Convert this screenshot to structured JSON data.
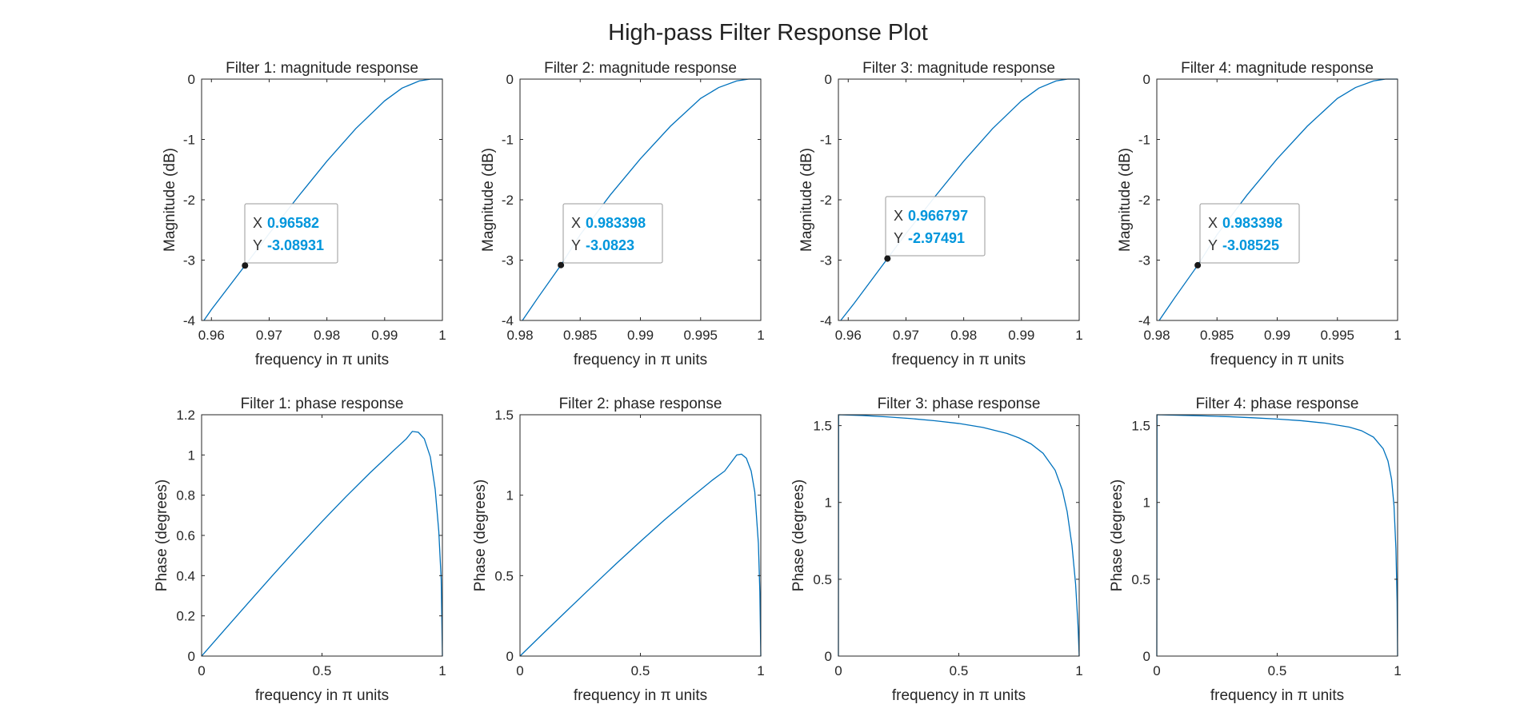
{
  "figure_title": "High-pass Filter Response Plot",
  "colors": {
    "line": "#0072BD",
    "axes": "#262626",
    "datatip_value": "#0096DC",
    "marker": "#1a1a1a"
  },
  "chart_data": [
    {
      "type": "line",
      "title": "Filter 1: magnitude response",
      "xlabel": "frequency in π units",
      "ylabel": "Magnitude (dB)",
      "xlim": [
        0.9583,
        1
      ],
      "ylim": [
        -4,
        0
      ],
      "xticks": [
        0.96,
        0.97,
        0.98,
        0.99,
        1
      ],
      "xtick_labels": [
        "0.96",
        "0.97",
        "0.98",
        "0.99",
        "1"
      ],
      "yticks": [
        -4,
        -3,
        -2,
        -1,
        0
      ],
      "ytick_labels": [
        "-4",
        "-3",
        "-2",
        "-1",
        "0"
      ],
      "series": [
        {
          "x": [
            0.9587,
            0.96,
            0.96582,
            0.97,
            0.975,
            0.98,
            0.985,
            0.99,
            0.993,
            0.996,
            0.998,
            1.0
          ],
          "y": [
            -4.0,
            -3.82,
            -3.08931,
            -2.56,
            -1.95,
            -1.36,
            -0.82,
            -0.36,
            -0.15,
            -0.03,
            0.0,
            0.0
          ]
        }
      ],
      "datatip": {
        "x": 0.96582,
        "y": -3.08931,
        "x_label": "X",
        "y_label": "Y",
        "x_text": "0.96582",
        "y_text": "-3.08931"
      }
    },
    {
      "type": "line",
      "title": "Filter 2: magnitude response",
      "xlabel": "frequency in π units",
      "ylabel": "Magnitude (dB)",
      "xlim": [
        0.98,
        1
      ],
      "ylim": [
        -4,
        0
      ],
      "xticks": [
        0.98,
        0.985,
        0.99,
        0.995,
        1
      ],
      "xtick_labels": [
        "0.98",
        "0.985",
        "0.99",
        "0.995",
        "1"
      ],
      "yticks": [
        -4,
        -3,
        -2,
        -1,
        0
      ],
      "ytick_labels": [
        "-4",
        "-3",
        "-2",
        "-1",
        "0"
      ],
      "series": [
        {
          "x": [
            0.9802,
            0.9815,
            0.983398,
            0.985,
            0.9875,
            0.99,
            0.9925,
            0.995,
            0.9965,
            0.998,
            0.999,
            1.0
          ],
          "y": [
            -4.0,
            -3.62,
            -3.0823,
            -2.58,
            -1.92,
            -1.32,
            -0.78,
            -0.32,
            -0.14,
            -0.03,
            0.0,
            0.0
          ]
        }
      ],
      "datatip": {
        "x": 0.983398,
        "y": -3.0823,
        "x_label": "X",
        "y_label": "Y",
        "x_text": "0.983398",
        "y_text": "-3.0823"
      }
    },
    {
      "type": "line",
      "title": "Filter 3: magnitude response",
      "xlabel": "frequency in π units",
      "ylabel": "Magnitude (dB)",
      "xlim": [
        0.9583,
        1
      ],
      "ylim": [
        -4,
        0
      ],
      "xticks": [
        0.96,
        0.97,
        0.98,
        0.99,
        1
      ],
      "xtick_labels": [
        "0.96",
        "0.97",
        "0.98",
        "0.99",
        "1"
      ],
      "yticks": [
        -4,
        -3,
        -2,
        -1,
        0
      ],
      "ytick_labels": [
        "-4",
        "-3",
        "-2",
        "-1",
        "0"
      ],
      "series": [
        {
          "x": [
            0.9587,
            0.961,
            0.966797,
            0.97,
            0.975,
            0.98,
            0.985,
            0.99,
            0.993,
            0.996,
            0.998,
            1.0
          ],
          "y": [
            -4.0,
            -3.72,
            -2.97491,
            -2.56,
            -1.95,
            -1.36,
            -0.82,
            -0.36,
            -0.15,
            -0.03,
            0.0,
            0.0
          ]
        }
      ],
      "datatip": {
        "x": 0.966797,
        "y": -2.97491,
        "x_label": "X",
        "y_label": "Y",
        "x_text": "0.966797",
        "y_text": "-2.97491"
      }
    },
    {
      "type": "line",
      "title": "Filter 4: magnitude response",
      "xlabel": "frequency in π units",
      "ylabel": "Magnitude (dB)",
      "xlim": [
        0.98,
        1
      ],
      "ylim": [
        -4,
        0
      ],
      "xticks": [
        0.98,
        0.985,
        0.99,
        0.995,
        1
      ],
      "xtick_labels": [
        "0.98",
        "0.985",
        "0.99",
        "0.995",
        "1"
      ],
      "yticks": [
        -4,
        -3,
        -2,
        -1,
        0
      ],
      "ytick_labels": [
        "-4",
        "-3",
        "-2",
        "-1",
        "0"
      ],
      "series": [
        {
          "x": [
            0.9802,
            0.9815,
            0.983398,
            0.985,
            0.9875,
            0.99,
            0.9925,
            0.995,
            0.9965,
            0.998,
            0.999,
            1.0
          ],
          "y": [
            -4.0,
            -3.62,
            -3.08525,
            -2.58,
            -1.92,
            -1.32,
            -0.78,
            -0.32,
            -0.14,
            -0.03,
            0.0,
            0.0
          ]
        }
      ],
      "datatip": {
        "x": 0.983398,
        "y": -3.08525,
        "x_label": "X",
        "y_label": "Y",
        "x_text": "0.983398",
        "y_text": "-3.08525"
      }
    },
    {
      "type": "line",
      "title": "Filter 1: phase response",
      "xlabel": "frequency in π units",
      "ylabel": "Phase (degrees)",
      "xlim": [
        0,
        1
      ],
      "ylim": [
        0,
        1.2
      ],
      "xticks": [
        0,
        0.5,
        1
      ],
      "xtick_labels": [
        "0",
        "0.5",
        "1"
      ],
      "yticks": [
        0,
        0.2,
        0.4,
        0.6,
        0.8,
        1,
        1.2
      ],
      "ytick_labels": [
        "0",
        "0.2",
        "0.4",
        "0.6",
        "0.8",
        "1",
        "1.2"
      ],
      "series": [
        {
          "x": [
            0,
            0.1,
            0.2,
            0.3,
            0.4,
            0.5,
            0.6,
            0.7,
            0.75,
            0.8,
            0.85,
            0.875,
            0.9,
            0.925,
            0.95,
            0.97,
            0.985,
            0.995,
            1.0
          ],
          "y": [
            0,
            0.137,
            0.273,
            0.408,
            0.54,
            0.669,
            0.793,
            0.912,
            0.968,
            1.025,
            1.08,
            1.117,
            1.113,
            1.08,
            0.99,
            0.83,
            0.62,
            0.38,
            0
          ]
        }
      ]
    },
    {
      "type": "line",
      "title": "Filter 2: phase response",
      "xlabel": "frequency in π units",
      "ylabel": "Phase (degrees)",
      "xlim": [
        0,
        1
      ],
      "ylim": [
        0,
        1.5
      ],
      "xticks": [
        0,
        0.5,
        1
      ],
      "xtick_labels": [
        "0",
        "0.5",
        "1"
      ],
      "yticks": [
        0,
        0.5,
        1,
        1.5
      ],
      "ytick_labels": [
        "0",
        "0.5",
        "1",
        "1.5"
      ],
      "series": [
        {
          "x": [
            0,
            0.1,
            0.2,
            0.3,
            0.4,
            0.5,
            0.6,
            0.7,
            0.8,
            0.85,
            0.9,
            0.92,
            0.94,
            0.96,
            0.975,
            0.99,
            0.996,
            1.0
          ],
          "y": [
            0,
            0.146,
            0.29,
            0.433,
            0.575,
            0.712,
            0.846,
            0.973,
            1.095,
            1.15,
            1.25,
            1.255,
            1.23,
            1.15,
            1.02,
            0.7,
            0.4,
            0
          ]
        }
      ]
    },
    {
      "type": "line",
      "title": "Filter 3: phase response",
      "xlabel": "frequency in π units",
      "ylabel": "Phase (degrees)",
      "xlim": [
        0,
        1
      ],
      "ylim": [
        0,
        1.5708
      ],
      "xticks": [
        0,
        0.5,
        1
      ],
      "xtick_labels": [
        "0",
        "0.5",
        "1"
      ],
      "yticks": [
        0,
        0.5,
        1,
        1.5
      ],
      "ytick_labels": [
        "0",
        "0.5",
        "1",
        "1.5"
      ],
      "series": [
        {
          "x": [
            0,
            0.001,
            0.1,
            0.2,
            0.3,
            0.4,
            0.5,
            0.6,
            0.7,
            0.75,
            0.8,
            0.85,
            0.9,
            0.93,
            0.95,
            0.97,
            0.985,
            0.995,
            1.0
          ],
          "y": [
            0,
            1.5708,
            1.566,
            1.557,
            1.546,
            1.532,
            1.514,
            1.488,
            1.449,
            1.42,
            1.381,
            1.32,
            1.21,
            1.08,
            0.94,
            0.72,
            0.47,
            0.2,
            0
          ]
        }
      ]
    },
    {
      "type": "line",
      "title": "Filter 4: phase response",
      "xlabel": "frequency in π units",
      "ylabel": "Phase (degrees)",
      "xlim": [
        0,
        1
      ],
      "ylim": [
        0,
        1.5708
      ],
      "xticks": [
        0,
        0.5,
        1
      ],
      "xtick_labels": [
        "0",
        "0.5",
        "1"
      ],
      "yticks": [
        0,
        0.5,
        1,
        1.5
      ],
      "ytick_labels": [
        "0",
        "0.5",
        "1",
        "1.5"
      ],
      "series": [
        {
          "x": [
            0,
            0.001,
            0.1,
            0.2,
            0.3,
            0.4,
            0.5,
            0.6,
            0.7,
            0.8,
            0.85,
            0.9,
            0.94,
            0.96,
            0.975,
            0.985,
            0.993,
            0.998,
            1.0
          ],
          "y": [
            0,
            1.5708,
            1.567,
            1.563,
            1.558,
            1.551,
            1.543,
            1.532,
            1.516,
            1.49,
            1.467,
            1.425,
            1.35,
            1.27,
            1.15,
            0.98,
            0.7,
            0.35,
            0
          ]
        }
      ]
    }
  ]
}
